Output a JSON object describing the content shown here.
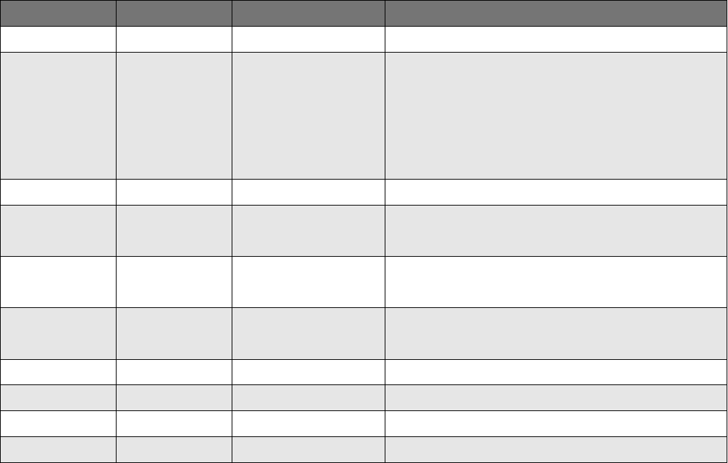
{
  "colors": {
    "header_bg": "#757575",
    "row_odd_bg": "#ffffff",
    "row_even_bg": "#e6e6e6",
    "border": "#000000"
  },
  "table": {
    "headers": [
      "",
      "",
      "",
      ""
    ],
    "rows": [
      [
        "",
        "",
        "",
        ""
      ],
      [
        "",
        "",
        "",
        ""
      ],
      [
        "",
        "",
        "",
        ""
      ],
      [
        "",
        "",
        "",
        ""
      ],
      [
        "",
        "",
        "",
        ""
      ],
      [
        "",
        "",
        "",
        ""
      ],
      [
        "",
        "",
        "",
        ""
      ],
      [
        "",
        "",
        "",
        ""
      ],
      [
        "",
        "",
        "",
        ""
      ],
      [
        "",
        "",
        "",
        ""
      ]
    ]
  }
}
